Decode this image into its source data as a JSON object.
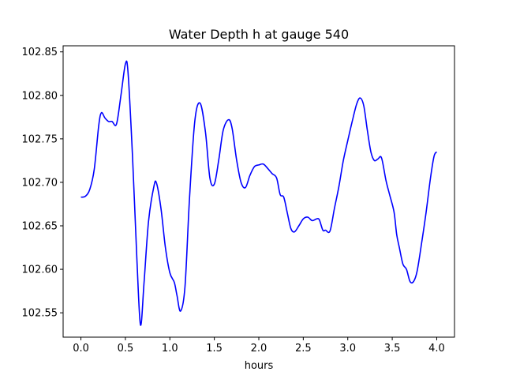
{
  "chart_data": {
    "type": "line",
    "title": "Water Depth h at gauge 540",
    "xlabel": "hours",
    "ylabel": "",
    "xlim": [
      -0.2,
      4.2
    ],
    "ylim": [
      102.522,
      102.857
    ],
    "x_ticks": [
      0.0,
      0.5,
      1.0,
      1.5,
      2.0,
      2.5,
      3.0,
      3.5,
      4.0
    ],
    "x_tick_labels": [
      "0.0",
      "0.5",
      "1.0",
      "1.5",
      "2.0",
      "2.5",
      "3.0",
      "3.5",
      "4.0"
    ],
    "y_ticks": [
      102.55,
      102.6,
      102.65,
      102.7,
      102.75,
      102.8,
      102.85
    ],
    "y_tick_labels": [
      "102.55",
      "102.60",
      "102.65",
      "102.70",
      "102.75",
      "102.80",
      "102.85"
    ],
    "grid": false,
    "series": [
      {
        "color": "#0000ff",
        "x": [
          0.0,
          0.05,
          0.1,
          0.15,
          0.2,
          0.23,
          0.27,
          0.31,
          0.35,
          0.4,
          0.45,
          0.5,
          0.53,
          0.58,
          0.63,
          0.67,
          0.71,
          0.76,
          0.82,
          0.85,
          0.9,
          0.95,
          1.0,
          1.05,
          1.08,
          1.12,
          1.17,
          1.22,
          1.28,
          1.34,
          1.4,
          1.45,
          1.5,
          1.55,
          1.6,
          1.66,
          1.7,
          1.75,
          1.8,
          1.85,
          1.9,
          1.95,
          2.0,
          2.05,
          2.1,
          2.15,
          2.2,
          2.24,
          2.28,
          2.32,
          2.36,
          2.4,
          2.45,
          2.5,
          2.55,
          2.6,
          2.65,
          2.68,
          2.72,
          2.75,
          2.8,
          2.85,
          2.9,
          2.95,
          3.0,
          3.05,
          3.1,
          3.14,
          3.18,
          3.22,
          3.26,
          3.3,
          3.34,
          3.38,
          3.43,
          3.47,
          3.52,
          3.55,
          3.58,
          3.62,
          3.66,
          3.7,
          3.74,
          3.78,
          3.83,
          3.88,
          3.93,
          3.97,
          4.0
        ],
        "y": [
          102.683,
          102.684,
          102.692,
          102.715,
          102.765,
          102.78,
          102.774,
          102.77,
          102.77,
          102.767,
          102.8,
          102.836,
          102.826,
          102.73,
          102.61,
          102.536,
          102.585,
          102.655,
          102.695,
          102.699,
          102.67,
          102.625,
          102.596,
          102.585,
          102.57,
          102.552,
          102.58,
          102.68,
          102.77,
          102.791,
          102.758,
          102.705,
          102.698,
          102.726,
          102.76,
          102.772,
          102.762,
          102.726,
          102.7,
          102.694,
          102.708,
          102.718,
          102.72,
          102.721,
          102.716,
          102.71,
          102.705,
          102.686,
          102.683,
          102.665,
          102.647,
          102.643,
          102.65,
          102.658,
          102.66,
          102.656,
          102.658,
          102.657,
          102.645,
          102.645,
          102.644,
          102.67,
          102.695,
          102.725,
          102.748,
          102.77,
          102.79,
          102.797,
          102.788,
          102.76,
          102.735,
          102.725,
          102.727,
          102.728,
          102.702,
          102.686,
          102.666,
          102.64,
          102.625,
          102.606,
          102.6,
          102.586,
          102.586,
          102.598,
          102.63,
          102.665,
          102.705,
          102.73,
          102.735
        ]
      }
    ]
  }
}
